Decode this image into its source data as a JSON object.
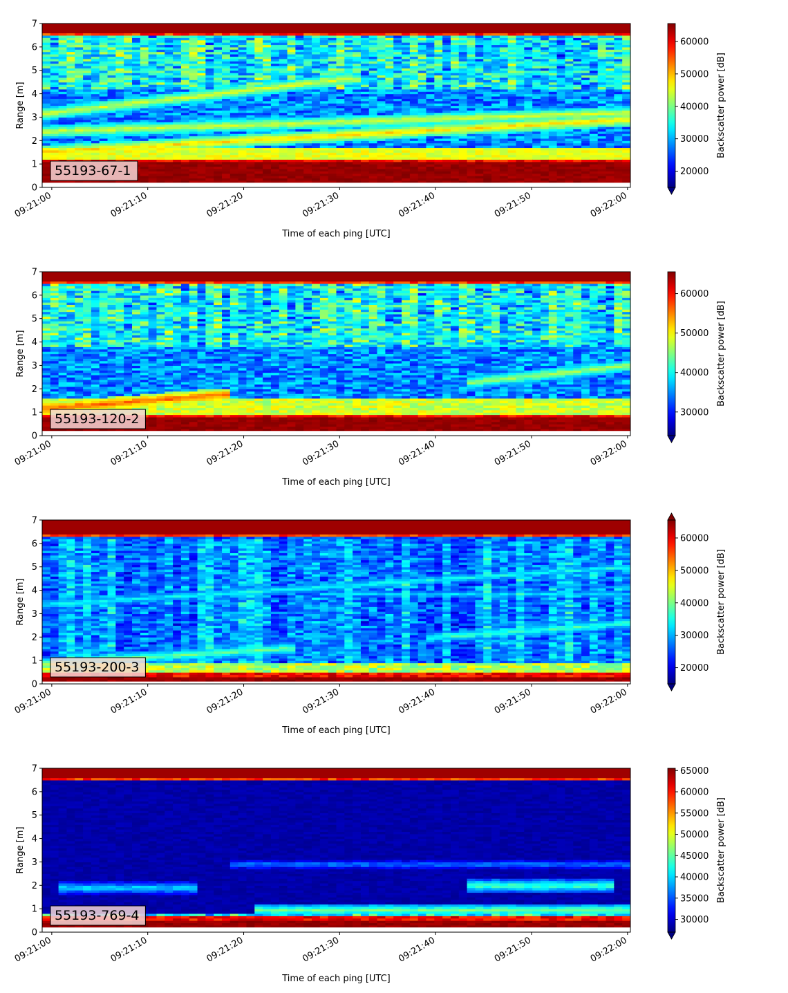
{
  "chart_data": [
    {
      "type": "heatmap",
      "panel_label": "55193-67-1",
      "xlabel": "Time of each ping [UTC]",
      "ylabel": "Range [m]",
      "x_ticks": [
        "09:21:00",
        "09:21:10",
        "09:21:20",
        "09:21:30",
        "09:21:40",
        "09:21:50",
        "09:22:00"
      ],
      "x_range_seconds": [
        -1,
        60.3
      ],
      "ylim": [
        0,
        7
      ],
      "y_ticks": [
        0,
        1,
        2,
        3,
        4,
        5,
        6,
        7
      ],
      "colorbar": {
        "label": "Backscatter power [dB]",
        "cmap": "jet",
        "vmin": 15000,
        "vmax": 65535,
        "ticks": [
          20000,
          30000,
          40000,
          50000,
          60000
        ],
        "extend": "min"
      },
      "features": {
        "top_band": [
          6.55,
          7.0
        ],
        "bottom_band": [
          0.2,
          1.2
        ],
        "upper_noise": [
          4.2,
          6.5
        ],
        "lines": [
          {
            "r0": 3.2,
            "r1": 4.6,
            "t0": 0,
            "t1": 30,
            "strength": 0.55
          },
          {
            "r0": 2.4,
            "r1": 3.2,
            "t0": 0,
            "t1": 60,
            "strength": 0.55
          },
          {
            "r0": 1.55,
            "r1": 2.9,
            "t0": 0,
            "t1": 60,
            "strength": 0.62
          }
        ]
      }
    },
    {
      "type": "heatmap",
      "panel_label": "55193-120-2",
      "xlabel": "Time of each ping [UTC]",
      "ylabel": "Range [m]",
      "x_ticks": [
        "09:21:00",
        "09:21:10",
        "09:21:20",
        "09:21:30",
        "09:21:40",
        "09:21:50",
        "09:22:00"
      ],
      "x_range_seconds": [
        -1,
        60.3
      ],
      "ylim": [
        0,
        7
      ],
      "y_ticks": [
        0,
        1,
        2,
        3,
        4,
        5,
        6,
        7
      ],
      "colorbar": {
        "label": "Backscatter power [dB]",
        "cmap": "jet",
        "vmin": 24000,
        "vmax": 65535,
        "ticks": [
          30000,
          40000,
          50000,
          60000
        ],
        "extend": "min"
      },
      "features": {
        "top_band": [
          6.55,
          7.0
        ],
        "bottom_band": [
          0.2,
          0.9
        ],
        "upper_noise": [
          3.8,
          6.5
        ],
        "lines": [
          {
            "r0": 1.2,
            "r1": 1.75,
            "t0": 0,
            "t1": 18,
            "strength": 0.75
          },
          {
            "r0": 2.3,
            "r1": 3.0,
            "t0": 44,
            "t1": 60,
            "strength": 0.5
          },
          {
            "r0": 4.2,
            "r1": 4.3,
            "t0": 25,
            "t1": 60,
            "strength": 0.35
          }
        ]
      }
    },
    {
      "type": "heatmap",
      "panel_label": "55193-200-3",
      "xlabel": "Time of each ping [UTC]",
      "ylabel": "Range [m]",
      "x_ticks": [
        "09:21:00",
        "09:21:10",
        "09:21:20",
        "09:21:30",
        "09:21:40",
        "09:21:50",
        "09:22:00"
      ],
      "x_range_seconds": [
        -1,
        60.3
      ],
      "ylim": [
        0,
        7
      ],
      "y_ticks": [
        0,
        1,
        2,
        3,
        4,
        5,
        6,
        7
      ],
      "colorbar": {
        "label": "Backscatter power [dB]",
        "cmap": "jet",
        "vmin": 15000,
        "vmax": 65535,
        "ticks": [
          20000,
          30000,
          40000,
          50000,
          60000
        ],
        "extend": "both"
      },
      "features": {
        "top_band": [
          6.3,
          7.0
        ],
        "bottom_band": [
          0.1,
          0.45
        ],
        "upper_noise": [
          0.5,
          6.2
        ],
        "lines": [
          {
            "r0": 3.4,
            "r1": 5.0,
            "t0": 0,
            "t1": 60,
            "strength": 0.35
          },
          {
            "r0": 0.9,
            "r1": 1.5,
            "t0": 0,
            "t1": 24,
            "strength": 0.45
          },
          {
            "r0": 2.0,
            "r1": 2.6,
            "t0": 40,
            "t1": 60,
            "strength": 0.4
          },
          {
            "r0": 3.85,
            "r1": 3.85,
            "t0": 30,
            "t1": 60,
            "strength": 0.3
          }
        ]
      }
    },
    {
      "type": "heatmap",
      "panel_label": "55193-769-4",
      "xlabel": "Time of each ping [UTC]",
      "ylabel": "Range [m]",
      "x_ticks": [
        "09:21:00",
        "09:21:10",
        "09:21:20",
        "09:21:30",
        "09:21:40",
        "09:21:50",
        "09:22:00"
      ],
      "x_range_seconds": [
        -1,
        60.3
      ],
      "ylim": [
        0,
        7
      ],
      "y_ticks": [
        0,
        1,
        2,
        3,
        4,
        5,
        6,
        7
      ],
      "colorbar": {
        "label": "Backscatter power [dB]",
        "cmap": "jet",
        "vmin": 27000,
        "vmax": 65535,
        "ticks": [
          30000,
          35000,
          40000,
          45000,
          50000,
          55000,
          60000,
          65000
        ],
        "extend": "min"
      },
      "features": {
        "top_band": [
          6.55,
          7.0
        ],
        "bottom_band": [
          0.2,
          0.65
        ],
        "upper_noise": [
          0.0,
          0.0
        ],
        "lines": [
          {
            "r0": 2.0,
            "r1": 2.0,
            "t0": 44,
            "t1": 58,
            "strength": 0.42
          },
          {
            "r0": 1.9,
            "r1": 1.9,
            "t0": 2,
            "t1": 14,
            "strength": 0.32
          },
          {
            "r0": 2.9,
            "r1": 2.9,
            "t0": 20,
            "t1": 60,
            "strength": 0.22
          },
          {
            "r0": 0.95,
            "r1": 0.95,
            "t0": 22,
            "t1": 60,
            "strength": 0.45
          }
        ]
      }
    }
  ]
}
